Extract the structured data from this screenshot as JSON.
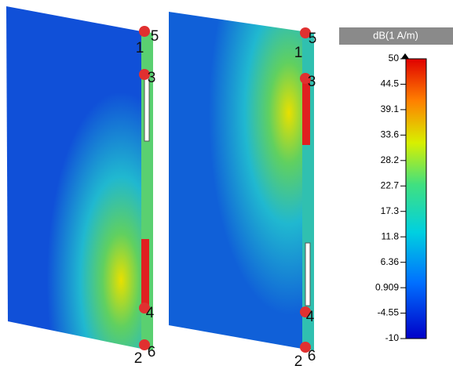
{
  "colorbar": {
    "title": "dB(1 A/m)",
    "ticks": [
      "50",
      "44.5",
      "39.1",
      "33.6",
      "28.2",
      "22.7",
      "17.3",
      "11.8",
      "6.36",
      "0.909",
      "-4.55",
      "-10"
    ]
  },
  "panels": [
    {
      "labels": [
        "1",
        "5",
        "3",
        "4",
        "2",
        "6"
      ]
    },
    {
      "labels": [
        "1",
        "5",
        "3",
        "4",
        "2",
        "6"
      ]
    }
  ]
}
